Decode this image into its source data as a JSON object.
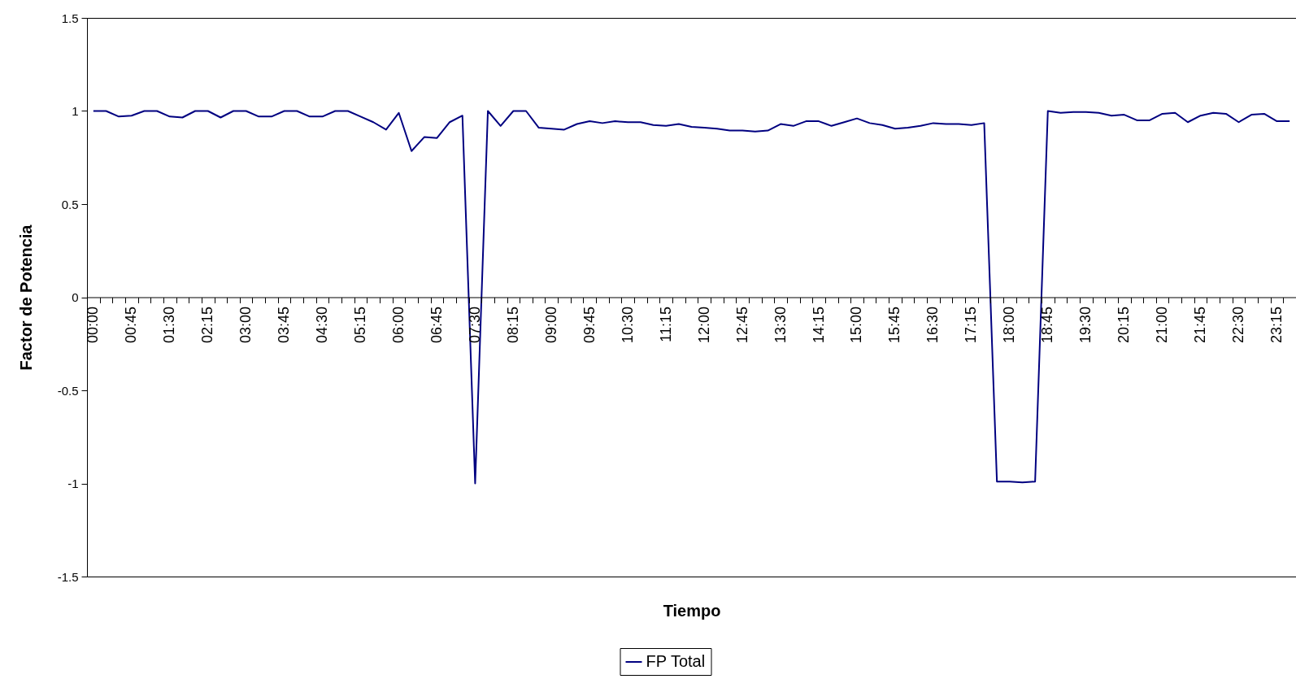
{
  "chart_data": {
    "type": "line",
    "xlabel": "Tiempo",
    "ylabel": "Factor de Potencia",
    "categories": [
      "00:00",
      null,
      null,
      "00:45",
      null,
      null,
      "01:30",
      null,
      null,
      "02:15",
      null,
      null,
      "03:00",
      null,
      null,
      "03:45",
      null,
      null,
      "04:30",
      null,
      null,
      "05:15",
      null,
      null,
      "06:00",
      null,
      null,
      "06:45",
      null,
      null,
      "07:30",
      null,
      null,
      "08:15",
      null,
      null,
      "09:00",
      null,
      null,
      "09:45",
      null,
      null,
      "10:30",
      null,
      null,
      "11:15",
      null,
      null,
      "12:00",
      null,
      null,
      "12:45",
      null,
      null,
      "13:30",
      null,
      null,
      "14:15",
      null,
      null,
      "15:00",
      null,
      null,
      "15:45",
      null,
      null,
      "16:30",
      null,
      null,
      "17:15",
      null,
      null,
      "18:00",
      null,
      null,
      "18:45",
      null,
      null,
      "19:30",
      null,
      null,
      "20:15",
      null,
      null,
      "21:00",
      null,
      null,
      "21:45",
      null,
      null,
      "22:30",
      null,
      null,
      "23:15",
      null
    ],
    "series": [
      {
        "name": "FP Total",
        "color": "#000080",
        "values": [
          1.0,
          1.0,
          0.97,
          0.975,
          1.0,
          1.0,
          0.97,
          0.965,
          1.0,
          1.0,
          0.965,
          1.0,
          1.0,
          0.97,
          0.97,
          1.0,
          1.0,
          0.97,
          0.97,
          1.0,
          1.0,
          0.97,
          0.94,
          0.9,
          0.99,
          0.785,
          0.86,
          0.855,
          0.94,
          0.975,
          -1.0,
          1.0,
          0.92,
          1.0,
          1.0,
          0.91,
          0.905,
          0.9,
          0.93,
          0.945,
          0.935,
          0.945,
          0.94,
          0.94,
          0.925,
          0.92,
          0.93,
          0.915,
          0.91,
          0.905,
          0.895,
          0.895,
          0.89,
          0.895,
          0.93,
          0.92,
          0.945,
          0.945,
          0.92,
          0.94,
          0.96,
          0.935,
          0.925,
          0.905,
          0.91,
          0.92,
          0.935,
          0.93,
          0.93,
          0.925,
          0.935,
          -0.99,
          -0.99,
          -0.995,
          -0.99,
          1.0,
          0.99,
          0.995,
          0.995,
          0.99,
          0.975,
          0.98,
          0.95,
          0.95,
          0.985,
          0.99,
          0.94,
          0.975,
          0.99,
          0.985,
          0.94,
          0.98,
          0.985,
          0.945,
          0.945
        ]
      }
    ],
    "ylim": [
      -1.5,
      1.5
    ],
    "yticks": [
      -1.5,
      -1,
      -0.5,
      0,
      0.5,
      1,
      1.5
    ],
    "legend": "bottom"
  }
}
